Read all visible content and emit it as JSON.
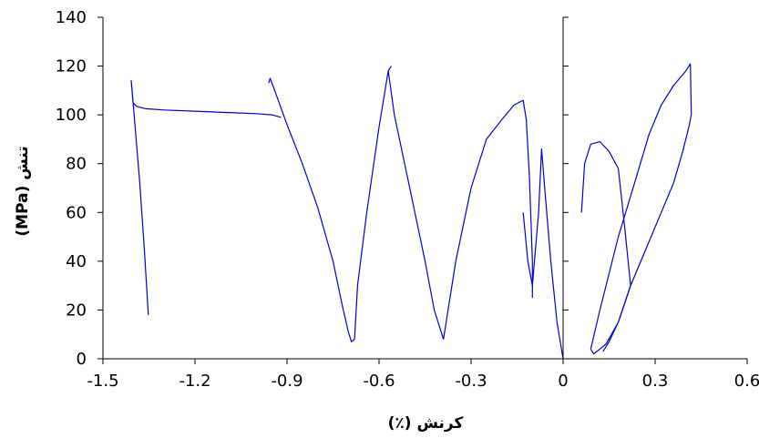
{
  "chart_data": {
    "type": "line",
    "xlabel": "کرنش (٪)",
    "ylabel": "تنش (MPa)",
    "xlim": [
      -1.5,
      0.6
    ],
    "ylim": [
      0,
      140
    ],
    "x_ticks": [
      "-1.5",
      "-1.2",
      "-0.9",
      "-0.6",
      "-0.3",
      "0",
      "0.3",
      "0.6"
    ],
    "y_ticks": [
      "0",
      "20",
      "40",
      "60",
      "80",
      "100",
      "120",
      "140"
    ],
    "grid": false,
    "legend": "none",
    "series_color": "#0000cc",
    "series": [
      {
        "x": [
          -1.352,
          -1.365,
          -1.38,
          -1.395,
          -1.405,
          -1.408,
          -1.402,
          -1.39,
          -1.36,
          -1.3,
          -1.2,
          -1.1,
          -1.0,
          -0.95,
          -0.92
        ],
        "y": [
          18,
          45,
          72,
          95,
          110,
          114,
          105,
          103.5,
          102.5,
          102,
          101.5,
          101,
          100.5,
          100,
          99
        ]
      },
      {
        "x": [
          -0.96,
          -0.955,
          -0.94,
          -0.9,
          -0.85,
          -0.8,
          -0.75,
          -0.72,
          -0.7,
          -0.69,
          -0.68
        ],
        "y": [
          113,
          115,
          110,
          96,
          80,
          62,
          40,
          22,
          11,
          7,
          8
        ]
      },
      {
        "x": [
          -0.68,
          -0.67,
          -0.64,
          -0.6,
          -0.57,
          -0.56
        ],
        "y": [
          8,
          30,
          60,
          95,
          118,
          120
        ]
      },
      {
        "x": [
          -0.57,
          -0.55,
          -0.5,
          -0.45,
          -0.42,
          -0.39
        ],
        "y": [
          118,
          100,
          70,
          40,
          20,
          8
        ]
      },
      {
        "x": [
          -0.39,
          -0.35,
          -0.3,
          -0.25,
          -0.2,
          -0.16,
          -0.13,
          -0.12,
          -0.11,
          -0.1,
          -0.1
        ],
        "y": [
          8,
          40,
          70,
          90,
          98,
          104,
          106,
          98,
          75,
          40,
          25
        ]
      },
      {
        "x": [
          -0.13,
          -0.115,
          -0.1,
          -0.08,
          -0.07,
          -0.06,
          -0.04,
          -0.02,
          0
        ],
        "y": [
          60,
          40,
          30,
          60,
          86,
          70,
          40,
          15,
          0
        ]
      },
      {
        "x": [
          0.06,
          0.07,
          0.09,
          0.12,
          0.15,
          0.18,
          0.2,
          0.22,
          0.18,
          0.14,
          0.1,
          0.09
        ],
        "y": [
          60,
          80,
          88,
          89,
          85,
          78,
          55,
          30,
          15,
          6,
          2,
          4
        ]
      },
      {
        "x": [
          0.09,
          0.12,
          0.18,
          0.24,
          0.28,
          0.32,
          0.36,
          0.4,
          0.415
        ],
        "y": [
          4,
          20,
          50,
          75,
          92,
          104,
          112,
          118,
          121
        ]
      },
      {
        "x": [
          0.415,
          0.418,
          0.41,
          0.39,
          0.36,
          0.32,
          0.27,
          0.22,
          0.18,
          0.15,
          0.13
        ],
        "y": [
          121,
          100,
          95,
          85,
          72,
          60,
          45,
          30,
          15,
          7,
          3
        ]
      }
    ]
  }
}
